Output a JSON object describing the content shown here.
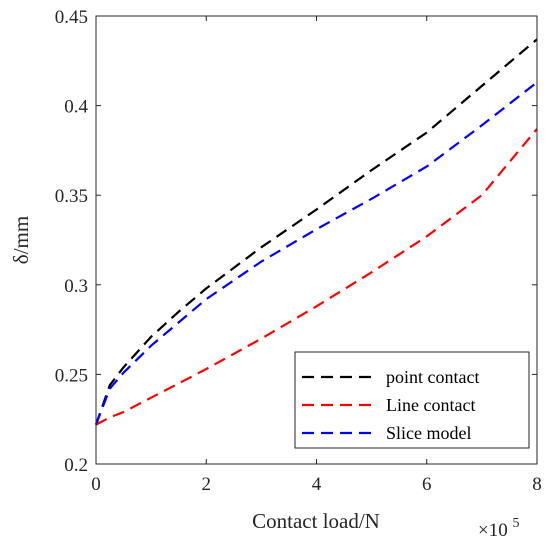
{
  "chart_data": {
    "type": "line",
    "xlabel": "Contact load/N",
    "ylabel": "δ/mm",
    "x_multiplier": {
      "base": "×10",
      "exponent": "5"
    },
    "xlim": [
      0,
      8
    ],
    "ylim": [
      0.2,
      0.45
    ],
    "xticks": [
      "0",
      "2",
      "4",
      "6",
      "8"
    ],
    "yticks": [
      "0.2",
      "0.25",
      "0.3",
      "0.35",
      "0.4",
      "0.45"
    ],
    "grid": false,
    "legend_position": "bottom-right",
    "x": [
      0,
      0.25,
      0.5,
      1,
      1.5,
      2,
      3,
      4,
      5,
      6,
      7,
      8
    ],
    "series": [
      {
        "name": "point contact",
        "color": "#000000",
        "values": [
          0.222,
          0.244,
          0.254,
          0.271,
          0.285,
          0.298,
          0.321,
          0.342,
          0.364,
          0.385,
          0.411,
          0.437
        ]
      },
      {
        "name": "Line contact",
        "color": "#ff0000",
        "values": [
          0.222,
          0.226,
          0.229,
          0.237,
          0.245,
          0.253,
          0.27,
          0.288,
          0.307,
          0.327,
          0.35,
          0.387
        ]
      },
      {
        "name": "Slice model",
        "color": "#0000ff",
        "values": [
          0.222,
          0.242,
          0.251,
          0.266,
          0.279,
          0.292,
          0.313,
          0.331,
          0.348,
          0.366,
          0.389,
          0.413
        ]
      }
    ]
  }
}
